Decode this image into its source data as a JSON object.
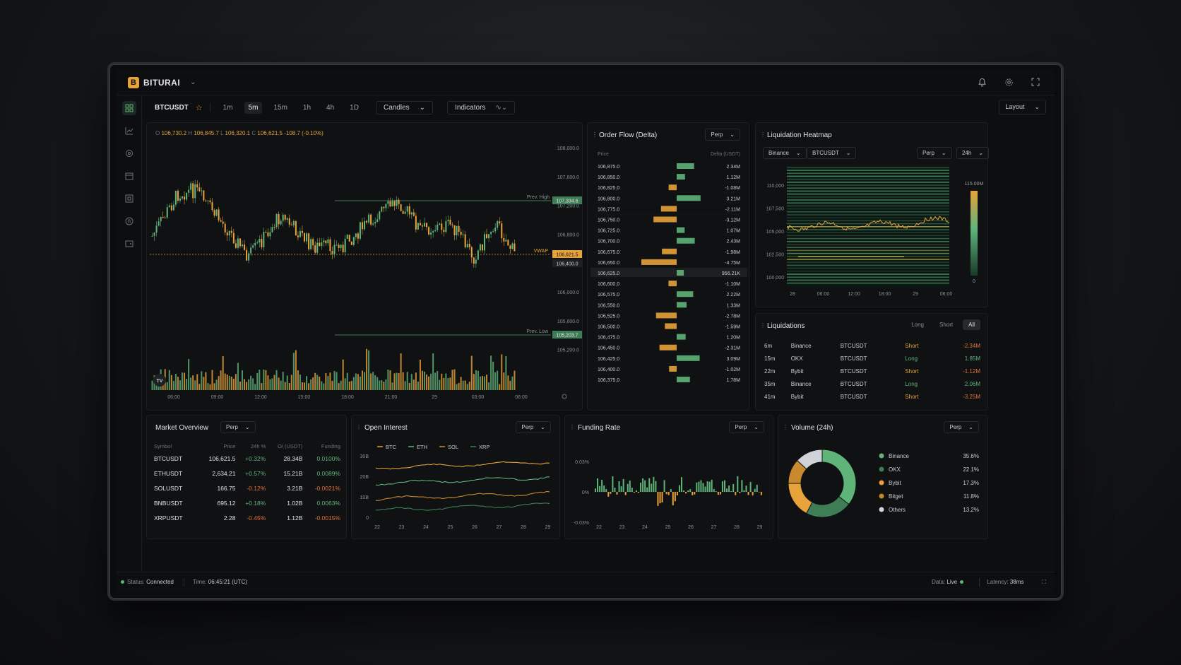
{
  "app": {
    "brand": "BITURAI",
    "logo_glyph": "B"
  },
  "top_icons": [
    "bell-icon",
    "settings-icon",
    "fullscreen-icon"
  ],
  "sidebar": [
    "dashboard-icon",
    "chart-icon",
    "target-icon",
    "calendar-icon",
    "grid-icon",
    "bitcoin-icon",
    "wallet-icon"
  ],
  "toolbar": {
    "symbol": "BTCUSDT",
    "timeframes": [
      "1m",
      "5m",
      "15m",
      "1h",
      "4h",
      "1D"
    ],
    "active_timeframe": "5m",
    "chart_type": "Candles",
    "indicators": "Indicators",
    "layout": "Layout"
  },
  "price_chart": {
    "ohlc": {
      "o_label": "O",
      "o": "106,730.2",
      "h_label": "H",
      "h": "106,845.7",
      "l_label": "L",
      "l": "106,320.1",
      "c_label": "C",
      "c": "106,621.5",
      "change": "-108.7 (-0.10%)"
    },
    "y_ticks": [
      "108,000.0",
      "107,600.0",
      "107,200.0",
      "106,800.0",
      "106,400.0",
      "106,000.0",
      "105,600.0",
      "105,200.0"
    ],
    "x_ticks": [
      "06:00",
      "09:00",
      "12:00",
      "15:00",
      "18:00",
      "21:00",
      "29",
      "03:00",
      "06:00"
    ],
    "prev_high_label": "Prev. High",
    "prev_high": "107,334.6",
    "vwap_label": "VWAP",
    "vwap": "106,621.5",
    "current": "106,400.0",
    "prev_low_label": "Prev. Low",
    "prev_low": "105,203.7",
    "colors": {
      "up": "#5fb47a",
      "down": "#e8a23a"
    }
  },
  "order_flow": {
    "title": "Order Flow (Delta)",
    "market": "Perp",
    "col_price": "Price",
    "col_delta": "Delta (USDT)",
    "rows": [
      {
        "price": "106,875.0",
        "delta": "2.34M",
        "value": 2.34
      },
      {
        "price": "106,850.0",
        "delta": "1.12M",
        "value": 1.12
      },
      {
        "price": "106,825.0",
        "delta": "-1.08M",
        "value": -1.08
      },
      {
        "price": "106,800.0",
        "delta": "3.21M",
        "value": 3.21
      },
      {
        "price": "106,775.0",
        "delta": "-2.11M",
        "value": -2.11
      },
      {
        "price": "106,750.0",
        "delta": "-3.12M",
        "value": -3.12
      },
      {
        "price": "106,725.0",
        "delta": "1.07M",
        "value": 1.07
      },
      {
        "price": "106,700.0",
        "delta": "2.43M",
        "value": 2.43
      },
      {
        "price": "106,675.0",
        "delta": "-1.98M",
        "value": -1.98
      },
      {
        "price": "106,650.0",
        "delta": "-4.75M",
        "value": -4.75
      },
      {
        "price": "106,625.0",
        "delta": "956.21K",
        "value": 0.956
      },
      {
        "price": "106,600.0",
        "delta": "-1.10M",
        "value": -1.1
      },
      {
        "price": "106,575.0",
        "delta": "2.22M",
        "value": 2.22
      },
      {
        "price": "106,550.0",
        "delta": "1.33M",
        "value": 1.33
      },
      {
        "price": "106,525.0",
        "delta": "-2.78M",
        "value": -2.78
      },
      {
        "price": "106,500.0",
        "delta": "-1.59M",
        "value": -1.59
      },
      {
        "price": "106,475.0",
        "delta": "1.20M",
        "value": 1.2
      },
      {
        "price": "106,450.0",
        "delta": "-2.31M",
        "value": -2.31
      },
      {
        "price": "106,425.0",
        "delta": "3.09M",
        "value": 3.09
      },
      {
        "price": "106,400.0",
        "delta": "-1.02M",
        "value": -1.02
      },
      {
        "price": "106,375.0",
        "delta": "1.78M",
        "value": 1.78
      }
    ]
  },
  "heatmap": {
    "title": "Liquidation Heatmap",
    "exchange": "Binance",
    "symbol": "BTCUSDT",
    "market": "Perp",
    "range": "24h",
    "y_ticks": [
      "110,000",
      "107,500",
      "105,000",
      "102,500",
      "100,000"
    ],
    "x_ticks": [
      "28",
      "06:00",
      "12:00",
      "18:00",
      "29",
      "06:00"
    ],
    "scale_max": "115.00M",
    "scale_min": "0"
  },
  "liquidations": {
    "title": "Liquidations",
    "filters": [
      "Long",
      "Short",
      "All"
    ],
    "active_filter": "All",
    "rows": [
      {
        "age": "6m",
        "exchange": "Binance",
        "symbol": "BTCUSDT",
        "side": "Short",
        "amount": "-2.34M"
      },
      {
        "age": "15m",
        "exchange": "OKX",
        "symbol": "BTCUSDT",
        "side": "Long",
        "amount": "1.85M"
      },
      {
        "age": "22m",
        "exchange": "Bybit",
        "symbol": "BTCUSDT",
        "side": "Short",
        "amount": "-1.12M"
      },
      {
        "age": "35m",
        "exchange": "Binance",
        "symbol": "BTCUSDT",
        "side": "Long",
        "amount": "2.06M"
      },
      {
        "age": "41m",
        "exchange": "Bybit",
        "symbol": "BTCUSDT",
        "side": "Short",
        "amount": "-3.25M"
      }
    ]
  },
  "market_overview": {
    "title": "Market Overview",
    "market": "Perp",
    "columns": [
      "Symbol",
      "Price",
      "24h %",
      "OI (USDT)",
      "Funding"
    ],
    "rows": [
      {
        "symbol": "BTCUSDT",
        "price": "106,621.5",
        "change": "+0.32%",
        "oi": "28.34B",
        "funding": "0.0100%"
      },
      {
        "symbol": "ETHUSDT",
        "price": "2,634.21",
        "change": "+0.57%",
        "oi": "15.21B",
        "funding": "0.0089%"
      },
      {
        "symbol": "SOLUSDT",
        "price": "166.75",
        "change": "-0.12%",
        "oi": "3.21B",
        "funding": "-0.0021%"
      },
      {
        "symbol": "BNBUSDT",
        "price": "695.12",
        "change": "+0.18%",
        "oi": "1.02B",
        "funding": "0.0063%"
      },
      {
        "symbol": "XRPUSDT",
        "price": "2.28",
        "change": "-0.45%",
        "oi": "1.12B",
        "funding": "-0.0015%"
      }
    ]
  },
  "open_interest": {
    "title": "Open Interest",
    "market": "Perp",
    "legend": [
      "BTC",
      "ETH",
      "SOL",
      "XRP"
    ],
    "y_ticks": [
      "30B",
      "20B",
      "10B",
      "0"
    ],
    "x_ticks": [
      "22",
      "23",
      "24",
      "25",
      "26",
      "27",
      "28",
      "29"
    ]
  },
  "funding_rate": {
    "title": "Funding Rate",
    "market": "Perp",
    "y_ticks": [
      "0.03%",
      "0%",
      "-0.03%"
    ],
    "x_ticks": [
      "22",
      "23",
      "24",
      "25",
      "26",
      "27",
      "28",
      "29"
    ]
  },
  "volume": {
    "title": "Volume (24h)",
    "market": "Perp",
    "items": [
      {
        "name": "Binance",
        "pct": "35.6%",
        "value": 35.6,
        "color": "#5fb47a"
      },
      {
        "name": "OKX",
        "pct": "22.1%",
        "value": 22.1,
        "color": "#3e7d56"
      },
      {
        "name": "Bybit",
        "pct": "17.3%",
        "value": 17.3,
        "color": "#e8a23a"
      },
      {
        "name": "Bitget",
        "pct": "11.8%",
        "value": 11.8,
        "color": "#c98a2e"
      },
      {
        "name": "Others",
        "pct": "13.2%",
        "value": 13.2,
        "color": "#cfd2d6"
      }
    ]
  },
  "status": {
    "status_label": "Status:",
    "status_value": "Connected",
    "time_label": "Time:",
    "time_value": "06:45:21 (UTC)",
    "data_label": "Data:",
    "data_value": "Live",
    "latency_label": "Latency:",
    "latency_value": "38ms"
  }
}
